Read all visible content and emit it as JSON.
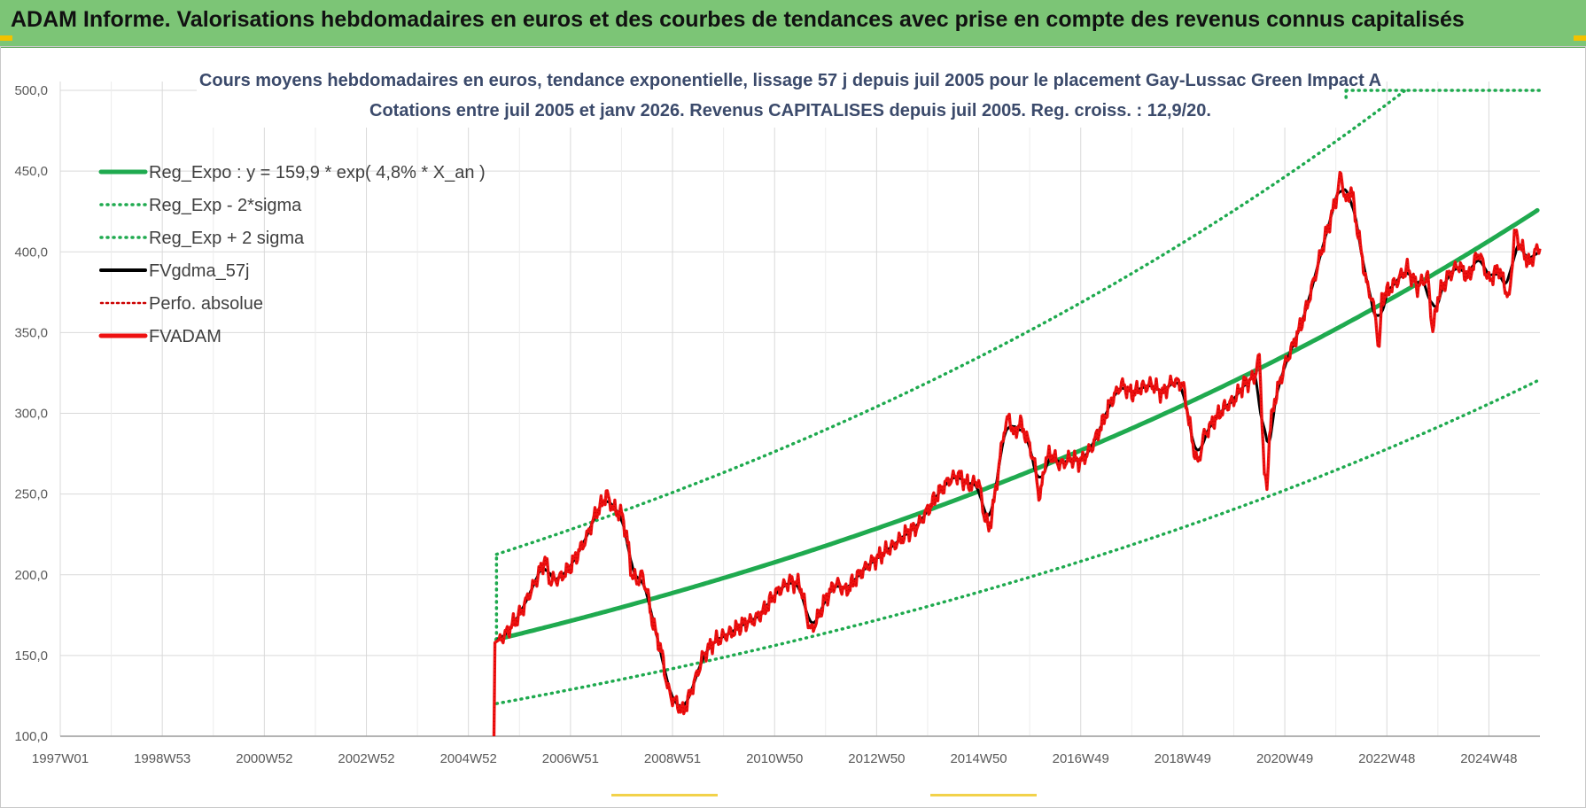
{
  "banner": {
    "title": "ADAM Informe. Valorisations hebdomadaires en euros et des courbes de tendances avec prise en compte des revenus connus capitalisés"
  },
  "colors": {
    "banner_bg": "#7cc576",
    "regression": "#1faa4f",
    "fund": "#ee1111",
    "moving_average": "#000000",
    "perf": "#cc0000"
  },
  "chart_data": {
    "type": "line",
    "title_line1": "Cours moyens hebdomadaires en euros, tendance exponentielle, lissage 57 j depuis juil 2005 pour le placement Gay-Lussac Green Impact A",
    "title_line2": "Cotations entre juil 2005 et janv 2026. Revenus CAPITALISES depuis juil 2005. Reg. croiss. : 12,9/20.",
    "x_tick_labels": [
      "1997W01",
      "1998W53",
      "2000W52",
      "2002W52",
      "2004W52",
      "2006W51",
      "2008W51",
      "2010W50",
      "2012W50",
      "2014W50",
      "2016W49",
      "2018W49",
      "2020W49",
      "2022W48",
      "2024W48"
    ],
    "x_tick_years": [
      1997.0,
      1999.0,
      2001.0,
      2003.0,
      2005.0,
      2007.0,
      2009.0,
      2011.0,
      2013.0,
      2015.0,
      2017.0,
      2019.0,
      2021.0,
      2023.0,
      2025.0
    ],
    "xlim": [
      1997.0,
      2026.0
    ],
    "ylim": [
      100,
      500
    ],
    "y_ticks": [
      "100,0",
      "150,0",
      "200,0",
      "250,0",
      "300,0",
      "350,0",
      "400,0",
      "450,0",
      "500,0"
    ],
    "grid": true,
    "legend_position": "top-left",
    "regression": {
      "base": 159.9,
      "rate": 0.048,
      "start_year": 2005.55,
      "end_year": 2025.95,
      "sigma_factor": 1.33
    },
    "series": [
      {
        "name": "Reg_Expo : y = 159,9 * exp( 4,8% *  X_an )",
        "style": "solid-green"
      },
      {
        "name": "Reg_Exp - 2*sigma",
        "style": "dotted-green"
      },
      {
        "name": "Reg_Exp + 2 sigma",
        "style": "dotted-green"
      },
      {
        "name": "FVgdma_57j",
        "style": "solid-black"
      },
      {
        "name": "Perfo. absolue",
        "style": "dotted-red"
      },
      {
        "name": "FVADAM",
        "style": "solid-red",
        "points": [
          [
            2005.5,
            100
          ],
          [
            2005.52,
            158
          ],
          [
            2005.7,
            162
          ],
          [
            2006.0,
            175
          ],
          [
            2006.3,
            195
          ],
          [
            2006.5,
            210
          ],
          [
            2006.6,
            196
          ],
          [
            2006.8,
            198
          ],
          [
            2007.0,
            205
          ],
          [
            2007.3,
            222
          ],
          [
            2007.5,
            238
          ],
          [
            2007.6,
            243
          ],
          [
            2007.7,
            250
          ],
          [
            2007.85,
            240
          ],
          [
            2008.0,
            238
          ],
          [
            2008.1,
            225
          ],
          [
            2008.2,
            200
          ],
          [
            2008.3,
            196
          ],
          [
            2008.4,
            200
          ],
          [
            2008.5,
            190
          ],
          [
            2008.6,
            172
          ],
          [
            2008.8,
            150
          ],
          [
            2008.9,
            130
          ],
          [
            2009.0,
            123
          ],
          [
            2009.1,
            120
          ],
          [
            2009.2,
            115
          ],
          [
            2009.3,
            122
          ],
          [
            2009.5,
            140
          ],
          [
            2009.6,
            150
          ],
          [
            2009.8,
            158
          ],
          [
            2010.0,
            162
          ],
          [
            2010.2,
            165
          ],
          [
            2010.4,
            170
          ],
          [
            2010.6,
            172
          ],
          [
            2010.8,
            178
          ],
          [
            2011.0,
            188
          ],
          [
            2011.3,
            196
          ],
          [
            2011.5,
            194
          ],
          [
            2011.6,
            180
          ],
          [
            2011.7,
            165
          ],
          [
            2011.8,
            170
          ],
          [
            2012.0,
            185
          ],
          [
            2012.2,
            195
          ],
          [
            2012.4,
            190
          ],
          [
            2012.6,
            198
          ],
          [
            2012.8,
            205
          ],
          [
            2013.0,
            210
          ],
          [
            2013.2,
            215
          ],
          [
            2013.4,
            220
          ],
          [
            2013.6,
            226
          ],
          [
            2013.8,
            230
          ],
          [
            2014.0,
            240
          ],
          [
            2014.2,
            250
          ],
          [
            2014.4,
            258
          ],
          [
            2014.6,
            262
          ],
          [
            2014.8,
            255
          ],
          [
            2015.0,
            258
          ],
          [
            2015.1,
            238
          ],
          [
            2015.2,
            228
          ],
          [
            2015.3,
            245
          ],
          [
            2015.4,
            268
          ],
          [
            2015.5,
            290
          ],
          [
            2015.6,
            298
          ],
          [
            2015.7,
            285
          ],
          [
            2015.8,
            295
          ],
          [
            2015.9,
            288
          ],
          [
            2016.0,
            280
          ],
          [
            2016.1,
            268
          ],
          [
            2016.2,
            246
          ],
          [
            2016.3,
            270
          ],
          [
            2016.4,
            275
          ],
          [
            2016.6,
            268
          ],
          [
            2016.8,
            272
          ],
          [
            2017.0,
            270
          ],
          [
            2017.2,
            278
          ],
          [
            2017.4,
            292
          ],
          [
            2017.6,
            308
          ],
          [
            2017.8,
            318
          ],
          [
            2018.0,
            312
          ],
          [
            2018.2,
            316
          ],
          [
            2018.4,
            318
          ],
          [
            2018.6,
            312
          ],
          [
            2018.8,
            320
          ],
          [
            2019.0,
            318
          ],
          [
            2019.1,
            300
          ],
          [
            2019.2,
            280
          ],
          [
            2019.3,
            268
          ],
          [
            2019.4,
            285
          ],
          [
            2019.6,
            295
          ],
          [
            2019.8,
            303
          ],
          [
            2020.0,
            308
          ],
          [
            2020.2,
            318
          ],
          [
            2020.4,
            322
          ],
          [
            2020.5,
            335
          ],
          [
            2020.55,
            300
          ],
          [
            2020.6,
            262
          ],
          [
            2020.65,
            252
          ],
          [
            2020.7,
            288
          ],
          [
            2020.8,
            308
          ],
          [
            2021.0,
            330
          ],
          [
            2021.2,
            345
          ],
          [
            2021.4,
            362
          ],
          [
            2021.6,
            386
          ],
          [
            2021.8,
            410
          ],
          [
            2022.0,
            432
          ],
          [
            2022.1,
            448
          ],
          [
            2022.2,
            430
          ],
          [
            2022.3,
            440
          ],
          [
            2022.4,
            418
          ],
          [
            2022.5,
            400
          ],
          [
            2022.6,
            380
          ],
          [
            2022.7,
            372
          ],
          [
            2022.8,
            355
          ],
          [
            2022.85,
            338
          ],
          [
            2022.9,
            370
          ],
          [
            2023.0,
            375
          ],
          [
            2023.2,
            382
          ],
          [
            2023.4,
            390
          ],
          [
            2023.6,
            378
          ],
          [
            2023.8,
            385
          ],
          [
            2023.9,
            350
          ],
          [
            2024.0,
            372
          ],
          [
            2024.2,
            385
          ],
          [
            2024.4,
            392
          ],
          [
            2024.6,
            384
          ],
          [
            2024.8,
            400
          ],
          [
            2025.0,
            382
          ],
          [
            2025.2,
            390
          ],
          [
            2025.4,
            370
          ],
          [
            2025.5,
            412
          ],
          [
            2025.6,
            405
          ],
          [
            2025.7,
            398
          ],
          [
            2025.8,
            392
          ],
          [
            2025.9,
            400
          ],
          [
            2026.0,
            402
          ]
        ]
      }
    ]
  }
}
